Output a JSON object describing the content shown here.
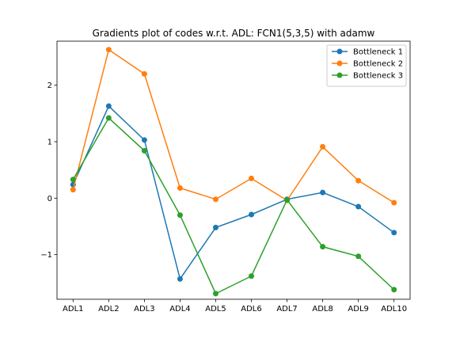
{
  "chart_data": {
    "type": "line",
    "title": "Gradients plot of codes w.r.t. ADL: FCN1(5,3,5) with adamw",
    "xlabel": "",
    "ylabel": "",
    "categories": [
      "ADL1",
      "ADL2",
      "ADL3",
      "ADL4",
      "ADL5",
      "ADL6",
      "ADL7",
      "ADL8",
      "ADL9",
      "ADL10"
    ],
    "ylim": [
      -1.79,
      2.78
    ],
    "yticks": [
      -1,
      0,
      1,
      2
    ],
    "ytick_labels": [
      "−1",
      "0",
      "1",
      "2"
    ],
    "grid": false,
    "legend_position": "top-right",
    "series": [
      {
        "name": "Bottleneck 1",
        "color": "#1f77b4",
        "values": [
          0.24,
          1.63,
          1.03,
          -1.43,
          -0.52,
          -0.29,
          -0.02,
          0.1,
          -0.15,
          -0.61
        ]
      },
      {
        "name": "Bottleneck 2",
        "color": "#ff7f0e",
        "values": [
          0.15,
          2.63,
          2.2,
          0.18,
          -0.02,
          0.35,
          -0.04,
          0.91,
          0.31,
          -0.08
        ]
      },
      {
        "name": "Bottleneck 3",
        "color": "#2ca02c",
        "values": [
          0.33,
          1.42,
          0.84,
          -0.3,
          -1.69,
          -1.38,
          -0.03,
          -0.86,
          -1.03,
          -1.62
        ]
      }
    ]
  }
}
